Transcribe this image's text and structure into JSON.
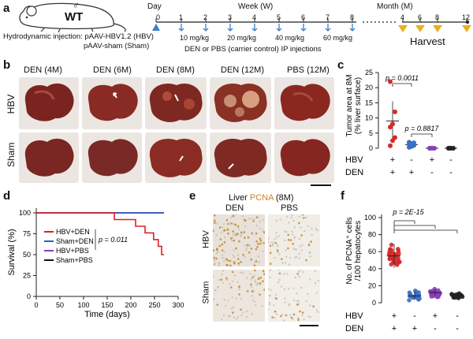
{
  "panel_labels": {
    "a": "a",
    "b": "b",
    "c": "c",
    "d": "d",
    "e": "e",
    "f": "f"
  },
  "panel_a": {
    "mouse_label": "WT",
    "mouse_sex_symbol": "♂",
    "injection_line1": "Hydrodynamic injection: pAAV-HBV1.2 (HBV)",
    "injection_line2": "pAAV-sham (Sham)",
    "day_label": "Day",
    "day_zero": "0",
    "week_label": "Week (W)",
    "week_ticks": [
      "1",
      "2",
      "3",
      "4",
      "5",
      "6",
      "7",
      "8"
    ],
    "doses": [
      "10 mg/kg",
      "20 mg/kg",
      "40 mg/kg",
      "60 mg/kg"
    ],
    "ip_label": "DEN or PBS (carrier control) IP injections",
    "month_label": "Month (M)",
    "month_ticks": [
      "4",
      "6",
      "8",
      "12"
    ],
    "harvest_label": "Harvest",
    "colors": {
      "injection_arrow": "#3a7fc4",
      "harvest": "#e8b020"
    }
  },
  "panel_b": {
    "columns": [
      "DEN (4M)",
      "DEN (6M)",
      "DEN (8M)",
      "DEN (12M)",
      "PBS (12M)"
    ],
    "rows": [
      "HBV",
      "Sham"
    ]
  },
  "panel_c": {
    "chart_data": {
      "type": "scatter",
      "ylabel": "Tumor area at 8M\n(% liver surface)",
      "ylim": [
        0,
        25
      ],
      "yticks": [
        0,
        5,
        10,
        15,
        20,
        25
      ],
      "groups": [
        {
          "HBV": "+",
          "DEN": "+",
          "color": "#d42a2a",
          "mean": 9,
          "sd": 6.5,
          "points": [
            0.8,
            2.5,
            3.5,
            7,
            8,
            12,
            22
          ]
        },
        {
          "HBV": "-",
          "DEN": "+",
          "color": "#3a6fc4",
          "mean": 1.2,
          "sd": 0.6,
          "points": [
            0.3,
            0.6,
            0.9,
            1.2,
            1.5,
            1.8,
            2.0
          ]
        },
        {
          "HBV": "+",
          "DEN": "-",
          "color": "#8a3cb8",
          "mean": 0,
          "sd": 0,
          "points": [
            0,
            0,
            0,
            0,
            0
          ]
        },
        {
          "HBV": "-",
          "DEN": "-",
          "color": "#222222",
          "mean": 0,
          "sd": 0,
          "points": [
            0,
            0,
            0,
            0,
            0
          ]
        }
      ],
      "annotations": [
        "p = 0.0011",
        "p = 0.8817"
      ],
      "row_labels": [
        "HBV",
        "DEN"
      ]
    }
  },
  "panel_d": {
    "chart_data": {
      "type": "line",
      "xlabel": "Time (days)",
      "ylabel": "Survival (%)",
      "xlim": [
        0,
        300
      ],
      "ylim": [
        0,
        100
      ],
      "xticks": [
        0,
        50,
        100,
        150,
        200,
        250,
        300
      ],
      "yticks": [
        0,
        25,
        50,
        75,
        100
      ],
      "series": [
        {
          "name": "HBV+DEN",
          "color": "#e02020",
          "points": [
            [
              0,
              100
            ],
            [
              165,
              100
            ],
            [
              165,
              92
            ],
            [
              210,
              92
            ],
            [
              210,
              84
            ],
            [
              230,
              84
            ],
            [
              230,
              76
            ],
            [
              248,
              76
            ],
            [
              248,
              68
            ],
            [
              258,
              68
            ],
            [
              258,
              60
            ],
            [
              265,
              60
            ],
            [
              265,
              50
            ],
            [
              270,
              50
            ]
          ]
        },
        {
          "name": "Sham+DEN",
          "color": "#2a5fc4",
          "points": [
            [
              0,
              100
            ],
            [
              270,
              100
            ]
          ]
        },
        {
          "name": "HBV+PBS",
          "color": "#8a3cb8",
          "points": [
            [
              0,
              100
            ],
            [
              270,
              100
            ]
          ]
        },
        {
          "name": "Sham+PBS",
          "color": "#111111",
          "points": [
            [
              0,
              100
            ],
            [
              270,
              100
            ]
          ]
        }
      ],
      "annotation": "p = 0.011"
    }
  },
  "panel_e": {
    "title_prefix": "Liver ",
    "title_marker": "PCNA",
    "title_suffix": " (8M)",
    "columns": [
      "DEN",
      "PBS"
    ],
    "rows": [
      "HBV",
      "Sham"
    ],
    "marker_color": "#c8862a"
  },
  "panel_f": {
    "chart_data": {
      "type": "scatter",
      "ylabel": "No. of PCNA⁺ cells\n/100 hepatocytes",
      "ylim": [
        0,
        100
      ],
      "yticks": [
        0,
        20,
        40,
        60,
        80,
        100
      ],
      "groups": [
        {
          "HBV": "+",
          "DEN": "+",
          "color": "#d42a2a",
          "mean": 55,
          "sd": 14
        },
        {
          "HBV": "-",
          "DEN": "+",
          "color": "#3a6fc4",
          "mean": 8,
          "sd": 5
        },
        {
          "HBV": "+",
          "DEN": "-",
          "color": "#8a3cb8",
          "mean": 12,
          "sd": 4
        },
        {
          "HBV": "-",
          "DEN": "-",
          "color": "#222222",
          "mean": 8,
          "sd": 2
        }
      ],
      "annotation": "p = 2E-15",
      "row_labels": [
        "HBV",
        "DEN"
      ]
    }
  }
}
